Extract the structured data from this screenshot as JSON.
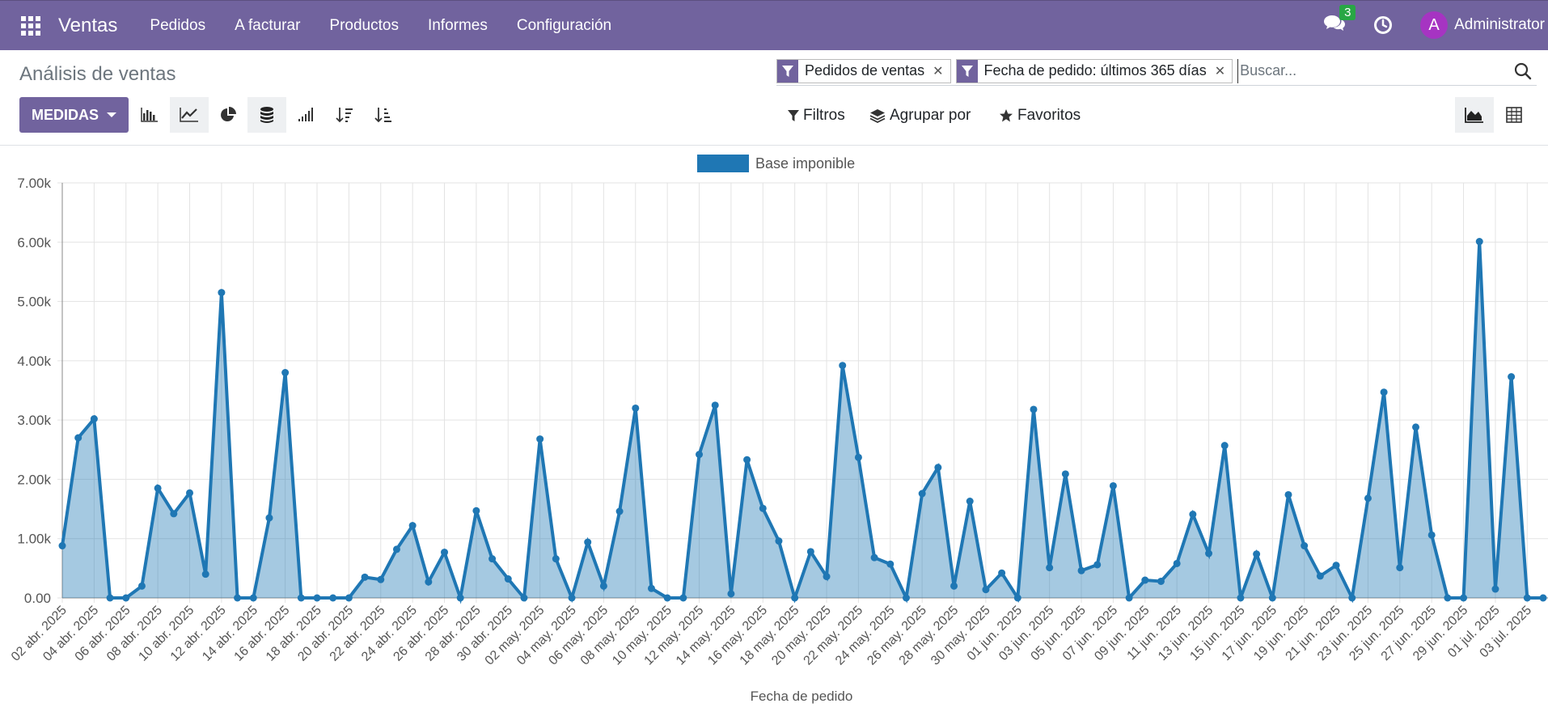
{
  "navbar": {
    "brand": "Ventas",
    "menu": [
      "Pedidos",
      "A facturar",
      "Productos",
      "Informes",
      "Configuración"
    ],
    "chat_count": "3",
    "avatar_letter": "A",
    "user": "Administrator"
  },
  "control_panel": {
    "title": "Análisis de ventas",
    "facets": [
      "Pedidos de ventas",
      "Fecha de pedido: últimos 365 días"
    ],
    "search_placeholder": "Buscar...",
    "measures_label": "MEDIDAS",
    "filters_label": "Filtros",
    "groupby_label": "Agrupar por",
    "favorites_label": "Favoritos",
    "colors": {
      "brand": "#71639e",
      "series": "#1f77b4"
    }
  },
  "chart_data": {
    "type": "area",
    "xlabel": "Fecha de pedido",
    "ylabel": "",
    "ylim": [
      0,
      7000
    ],
    "y_ticks": [
      "0.00",
      "1.00k",
      "2.00k",
      "3.00k",
      "4.00k",
      "5.00k",
      "6.00k",
      "7.00k"
    ],
    "legend": "top-center",
    "grid": true,
    "x_tick_labels": [
      "02 abr. 2025",
      "04 abr. 2025",
      "06 abr. 2025",
      "08 abr. 2025",
      "10 abr. 2025",
      "12 abr. 2025",
      "14 abr. 2025",
      "16 abr. 2025",
      "18 abr. 2025",
      "20 abr. 2025",
      "22 abr. 2025",
      "24 abr. 2025",
      "26 abr. 2025",
      "28 abr. 2025",
      "30 abr. 2025",
      "02 may. 2025",
      "04 may. 2025",
      "06 may. 2025",
      "08 may. 2025",
      "10 may. 2025",
      "12 may. 2025",
      "14 may. 2025",
      "16 may. 2025",
      "18 may. 2025",
      "20 may. 2025",
      "22 may. 2025",
      "24 may. 2025",
      "26 may. 2025",
      "28 may. 2025",
      "30 may. 2025",
      "01 jun. 2025",
      "03 jun. 2025",
      "05 jun. 2025",
      "07 jun. 2025",
      "09 jun. 2025",
      "11 jun. 2025",
      "13 jun. 2025",
      "15 jun. 2025",
      "17 jun. 2025",
      "19 jun. 2025",
      "21 jun. 2025",
      "23 jun. 2025",
      "25 jun. 2025",
      "27 jun. 2025",
      "29 jun. 2025",
      "01 jul. 2025",
      "03 jul. 2025"
    ],
    "series": [
      {
        "name": "Base imponible",
        "values": [
          880,
          2700,
          3020,
          0,
          0,
          200,
          1850,
          1420,
          1770,
          400,
          5150,
          0,
          0,
          1350,
          3800,
          0,
          0,
          0,
          0,
          350,
          310,
          820,
          1220,
          270,
          770,
          0,
          1470,
          660,
          320,
          0,
          2680,
          660,
          0,
          940,
          200,
          1460,
          3200,
          160,
          0,
          0,
          2420,
          3250,
          70,
          2330,
          1510,
          960,
          0,
          780,
          360,
          3920,
          2370,
          680,
          570,
          0,
          1760,
          2200,
          200,
          1630,
          140,
          420,
          0,
          3180,
          510,
          2090,
          460,
          560,
          1890,
          0,
          300,
          280,
          580,
          1410,
          750,
          2570,
          0,
          740,
          0,
          1740,
          880,
          370,
          550,
          0,
          1680,
          3470,
          510,
          2880,
          1060,
          0,
          0,
          6010,
          150,
          3730,
          0,
          0
        ]
      }
    ]
  }
}
